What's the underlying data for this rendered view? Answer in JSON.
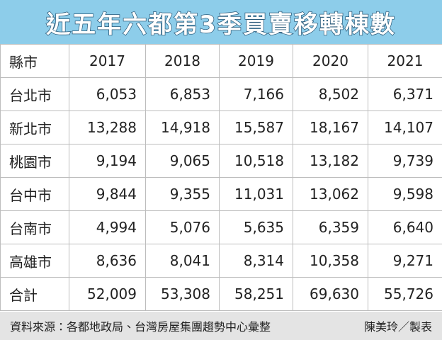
{
  "title": "近五年六都第3季買賣移轉棟數",
  "table": {
    "header": [
      "縣市",
      "2017",
      "2018",
      "2019",
      "2020",
      "2021"
    ],
    "rows": [
      [
        "台北市",
        "6,053",
        "6,853",
        "7,166",
        "8,502",
        "6,371"
      ],
      [
        "新北市",
        "13,288",
        "14,918",
        "15,587",
        "18,167",
        "14,107"
      ],
      [
        "桃園市",
        "9,194",
        "9,065",
        "10,518",
        "13,182",
        "9,739"
      ],
      [
        "台中市",
        "9,844",
        "9,355",
        "11,031",
        "13,062",
        "9,598"
      ],
      [
        "台南市",
        "4,994",
        "5,076",
        "5,635",
        "6,359",
        "6,640"
      ],
      [
        "高雄市",
        "8,636",
        "8,041",
        "8,314",
        "10,358",
        "9,271"
      ],
      [
        "合計",
        "52,009",
        "53,308",
        "58,251",
        "69,630",
        "55,726"
      ]
    ]
  },
  "footer": {
    "source": "資料來源：各都地政局、台灣房屋集團趨勢中心彙整",
    "credit": "陳美玲／製表"
  }
}
